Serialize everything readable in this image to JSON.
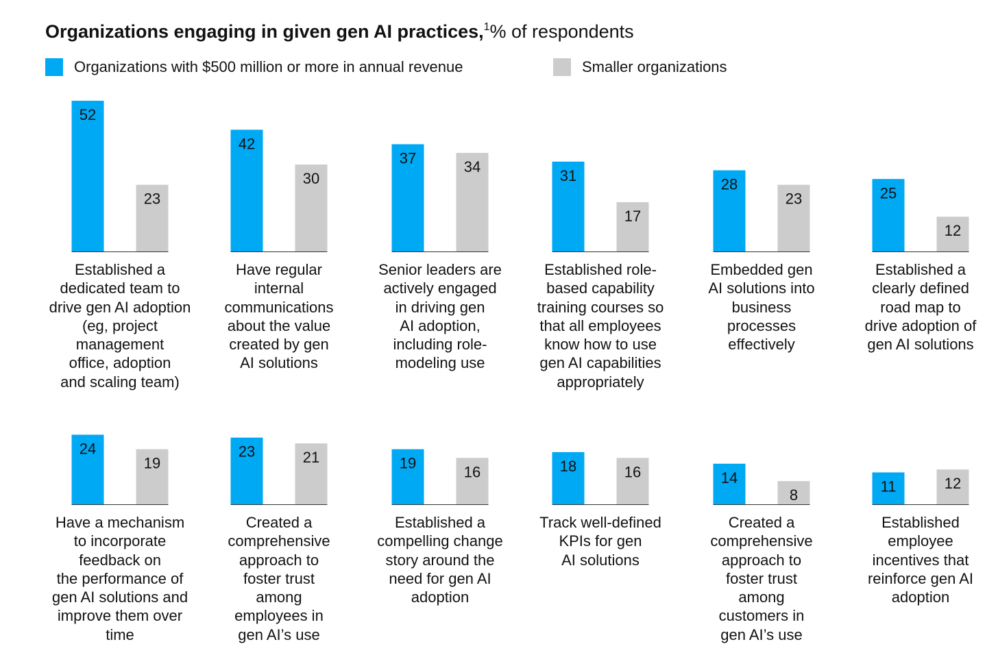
{
  "title": {
    "bold": "Organizations engaging in given gen AI practices,",
    "footnote": "1",
    "rest": "% of respondents"
  },
  "colors": {
    "large": "#00a9f4",
    "small": "#cccccc",
    "baseline": "#333333"
  },
  "legend": [
    {
      "label": "Organizations with $500 million or more in annual revenue",
      "color": "#00a9f4"
    },
    {
      "label": "Smaller organizations",
      "color": "#cccccc"
    }
  ],
  "chart_data": {
    "type": "bar",
    "unit": "% of respondents",
    "series": [
      {
        "name": "Organizations with $500 million or more in annual revenue",
        "values": [
          52,
          42,
          37,
          31,
          28,
          25,
          24,
          23,
          19,
          18,
          14,
          11
        ]
      },
      {
        "name": "Smaller organizations",
        "values": [
          23,
          30,
          34,
          17,
          23,
          12,
          19,
          21,
          16,
          16,
          8,
          12
        ]
      }
    ],
    "categories": [
      [
        "Established a",
        "dedicated team to",
        "drive gen AI adoption",
        "(eg, project",
        "management",
        "office, adoption",
        "and scaling team)"
      ],
      [
        "Have regular",
        "internal",
        "communications",
        "about the value",
        "created by gen",
        "AI solutions"
      ],
      [
        "Senior leaders are",
        "actively engaged",
        "in driving gen",
        "AI adoption,",
        "including role-",
        "modeling use"
      ],
      [
        "Established role-",
        "based capability",
        "training courses so",
        "that all employees",
        "know how to use",
        "gen AI capabilities",
        "appropriately"
      ],
      [
        "Embedded gen",
        "AI solutions into",
        "business",
        "processes",
        "effectively"
      ],
      [
        "Established a",
        "clearly defined",
        "road map to",
        "drive adoption of",
        "gen AI solutions"
      ],
      [
        "Have a mechanism",
        "to incorporate",
        "feedback on",
        "the performance of",
        "gen AI solutions and",
        "improve them over",
        "time"
      ],
      [
        "Created a",
        "comprehensive",
        "approach to",
        "foster trust",
        "among",
        "employees in",
        "gen AI’s use"
      ],
      [
        "Established a",
        "compelling change",
        "story around the",
        "need for gen AI",
        "adoption"
      ],
      [
        "Track well-defined",
        "KPIs for gen",
        "AI solutions"
      ],
      [
        "Created a",
        "comprehensive",
        "approach to",
        "foster trust",
        "among",
        "customers in",
        "gen AI’s use"
      ],
      [
        "Established",
        "employee",
        "incentives that",
        "reinforce gen AI",
        "adoption"
      ]
    ]
  }
}
